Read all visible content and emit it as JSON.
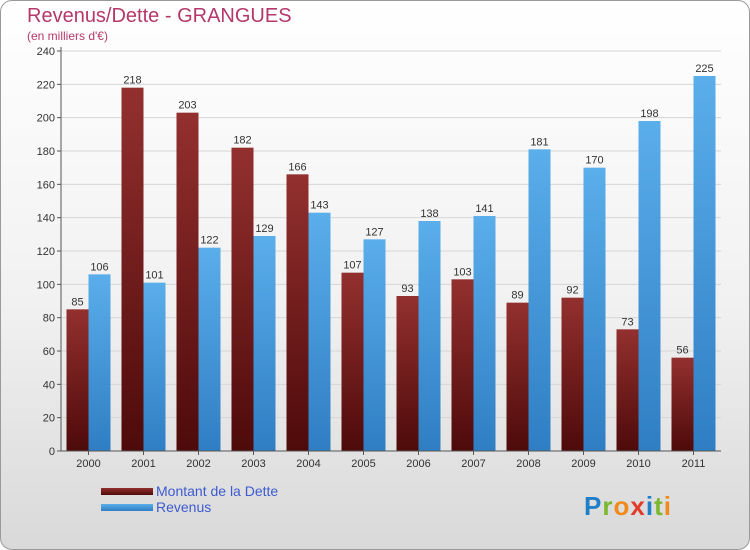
{
  "header": {
    "title": "Revenus/Dette - GRANGUES",
    "subtitle": "(en milliers d'€)"
  },
  "legend": {
    "items": [
      {
        "label": "Montant de la Dette"
      },
      {
        "label": "Revenus"
      }
    ]
  },
  "logo": {
    "text": "Proxiti",
    "letter_colors": [
      "#1f7fc8",
      "#7bb82f",
      "#f08a1d",
      "#e23b2a",
      "#1f7fc8",
      "#7bb82f",
      "#f08a1d"
    ]
  },
  "chart_data": {
    "type": "bar",
    "title": "Revenus/Dette - GRANGUES",
    "subtitle": "(en milliers d'€)",
    "categories": [
      "2000",
      "2001",
      "2002",
      "2003",
      "2004",
      "2005",
      "2006",
      "2007",
      "2008",
      "2009",
      "2010",
      "2011"
    ],
    "series": [
      {
        "name": "Montant de la Dette",
        "color": "#7a1a1a",
        "values": [
          85,
          218,
          203,
          182,
          166,
          107,
          93,
          103,
          89,
          92,
          73,
          56
        ]
      },
      {
        "name": "Revenus",
        "color": "#3e9be0",
        "values": [
          106,
          101,
          122,
          129,
          143,
          127,
          138,
          141,
          181,
          170,
          198,
          225
        ]
      }
    ],
    "ylim": [
      0,
      240
    ],
    "yticks": [
      0,
      20,
      40,
      60,
      80,
      100,
      120,
      140,
      160,
      180,
      200,
      220,
      240
    ],
    "grid": true,
    "legend_position": "bottom-left"
  }
}
